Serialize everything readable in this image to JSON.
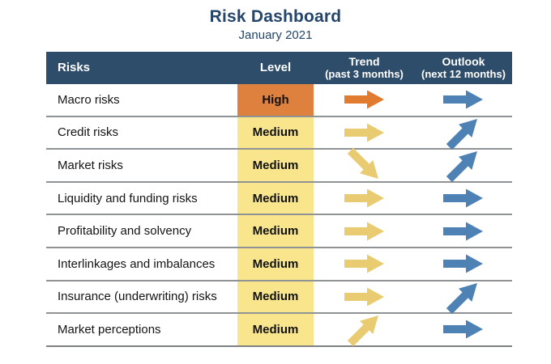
{
  "title": "Risk Dashboard",
  "subtitle": "January 2021",
  "chart_data": {
    "type": "table",
    "title": "Risk Dashboard",
    "subtitle": "January 2021",
    "columns": [
      {
        "label": "Risks",
        "sublabel": ""
      },
      {
        "label": "Level",
        "sublabel": ""
      },
      {
        "label": "Trend",
        "sublabel": "(past 3 months)"
      },
      {
        "label": "Outlook",
        "sublabel": "(next 12 months)"
      }
    ],
    "rows": [
      {
        "risk": "Macro risks",
        "level": "High",
        "trend": "right",
        "trend_color": "orange",
        "outlook": "right",
        "outlook_color": "blue"
      },
      {
        "risk": "Credit risks",
        "level": "Medium",
        "trend": "right",
        "trend_color": "yellow",
        "outlook": "up-right",
        "outlook_color": "blue"
      },
      {
        "risk": "Market risks",
        "level": "Medium",
        "trend": "down-right",
        "trend_color": "yellow",
        "outlook": "up-right",
        "outlook_color": "blue"
      },
      {
        "risk": "Liquidity and funding risks",
        "level": "Medium",
        "trend": "right",
        "trend_color": "yellow",
        "outlook": "right",
        "outlook_color": "blue"
      },
      {
        "risk": "Profitability and solvency",
        "level": "Medium",
        "trend": "right",
        "trend_color": "yellow",
        "outlook": "right",
        "outlook_color": "blue"
      },
      {
        "risk": "Interlinkages and imbalances",
        "level": "Medium",
        "trend": "right",
        "trend_color": "yellow",
        "outlook": "right",
        "outlook_color": "blue"
      },
      {
        "risk": "Insurance (underwriting) risks",
        "level": "Medium",
        "trend": "right",
        "trend_color": "yellow",
        "outlook": "up-right",
        "outlook_color": "blue"
      },
      {
        "risk": "Market perceptions",
        "level": "Medium",
        "trend": "up-right",
        "trend_color": "yellow",
        "outlook": "right",
        "outlook_color": "blue"
      }
    ]
  },
  "colors": {
    "title_text": "#24466B",
    "header_bg": "#2E4D6B",
    "header_text": "#FFFFFF",
    "level_high_bg": "#DE813E",
    "level_medium_bg": "#F8E58C",
    "arrow_orange": "#E07B2F",
    "arrow_yellow": "#E9CC71",
    "arrow_blue": "#4E81B4",
    "row_line": "#909396"
  }
}
